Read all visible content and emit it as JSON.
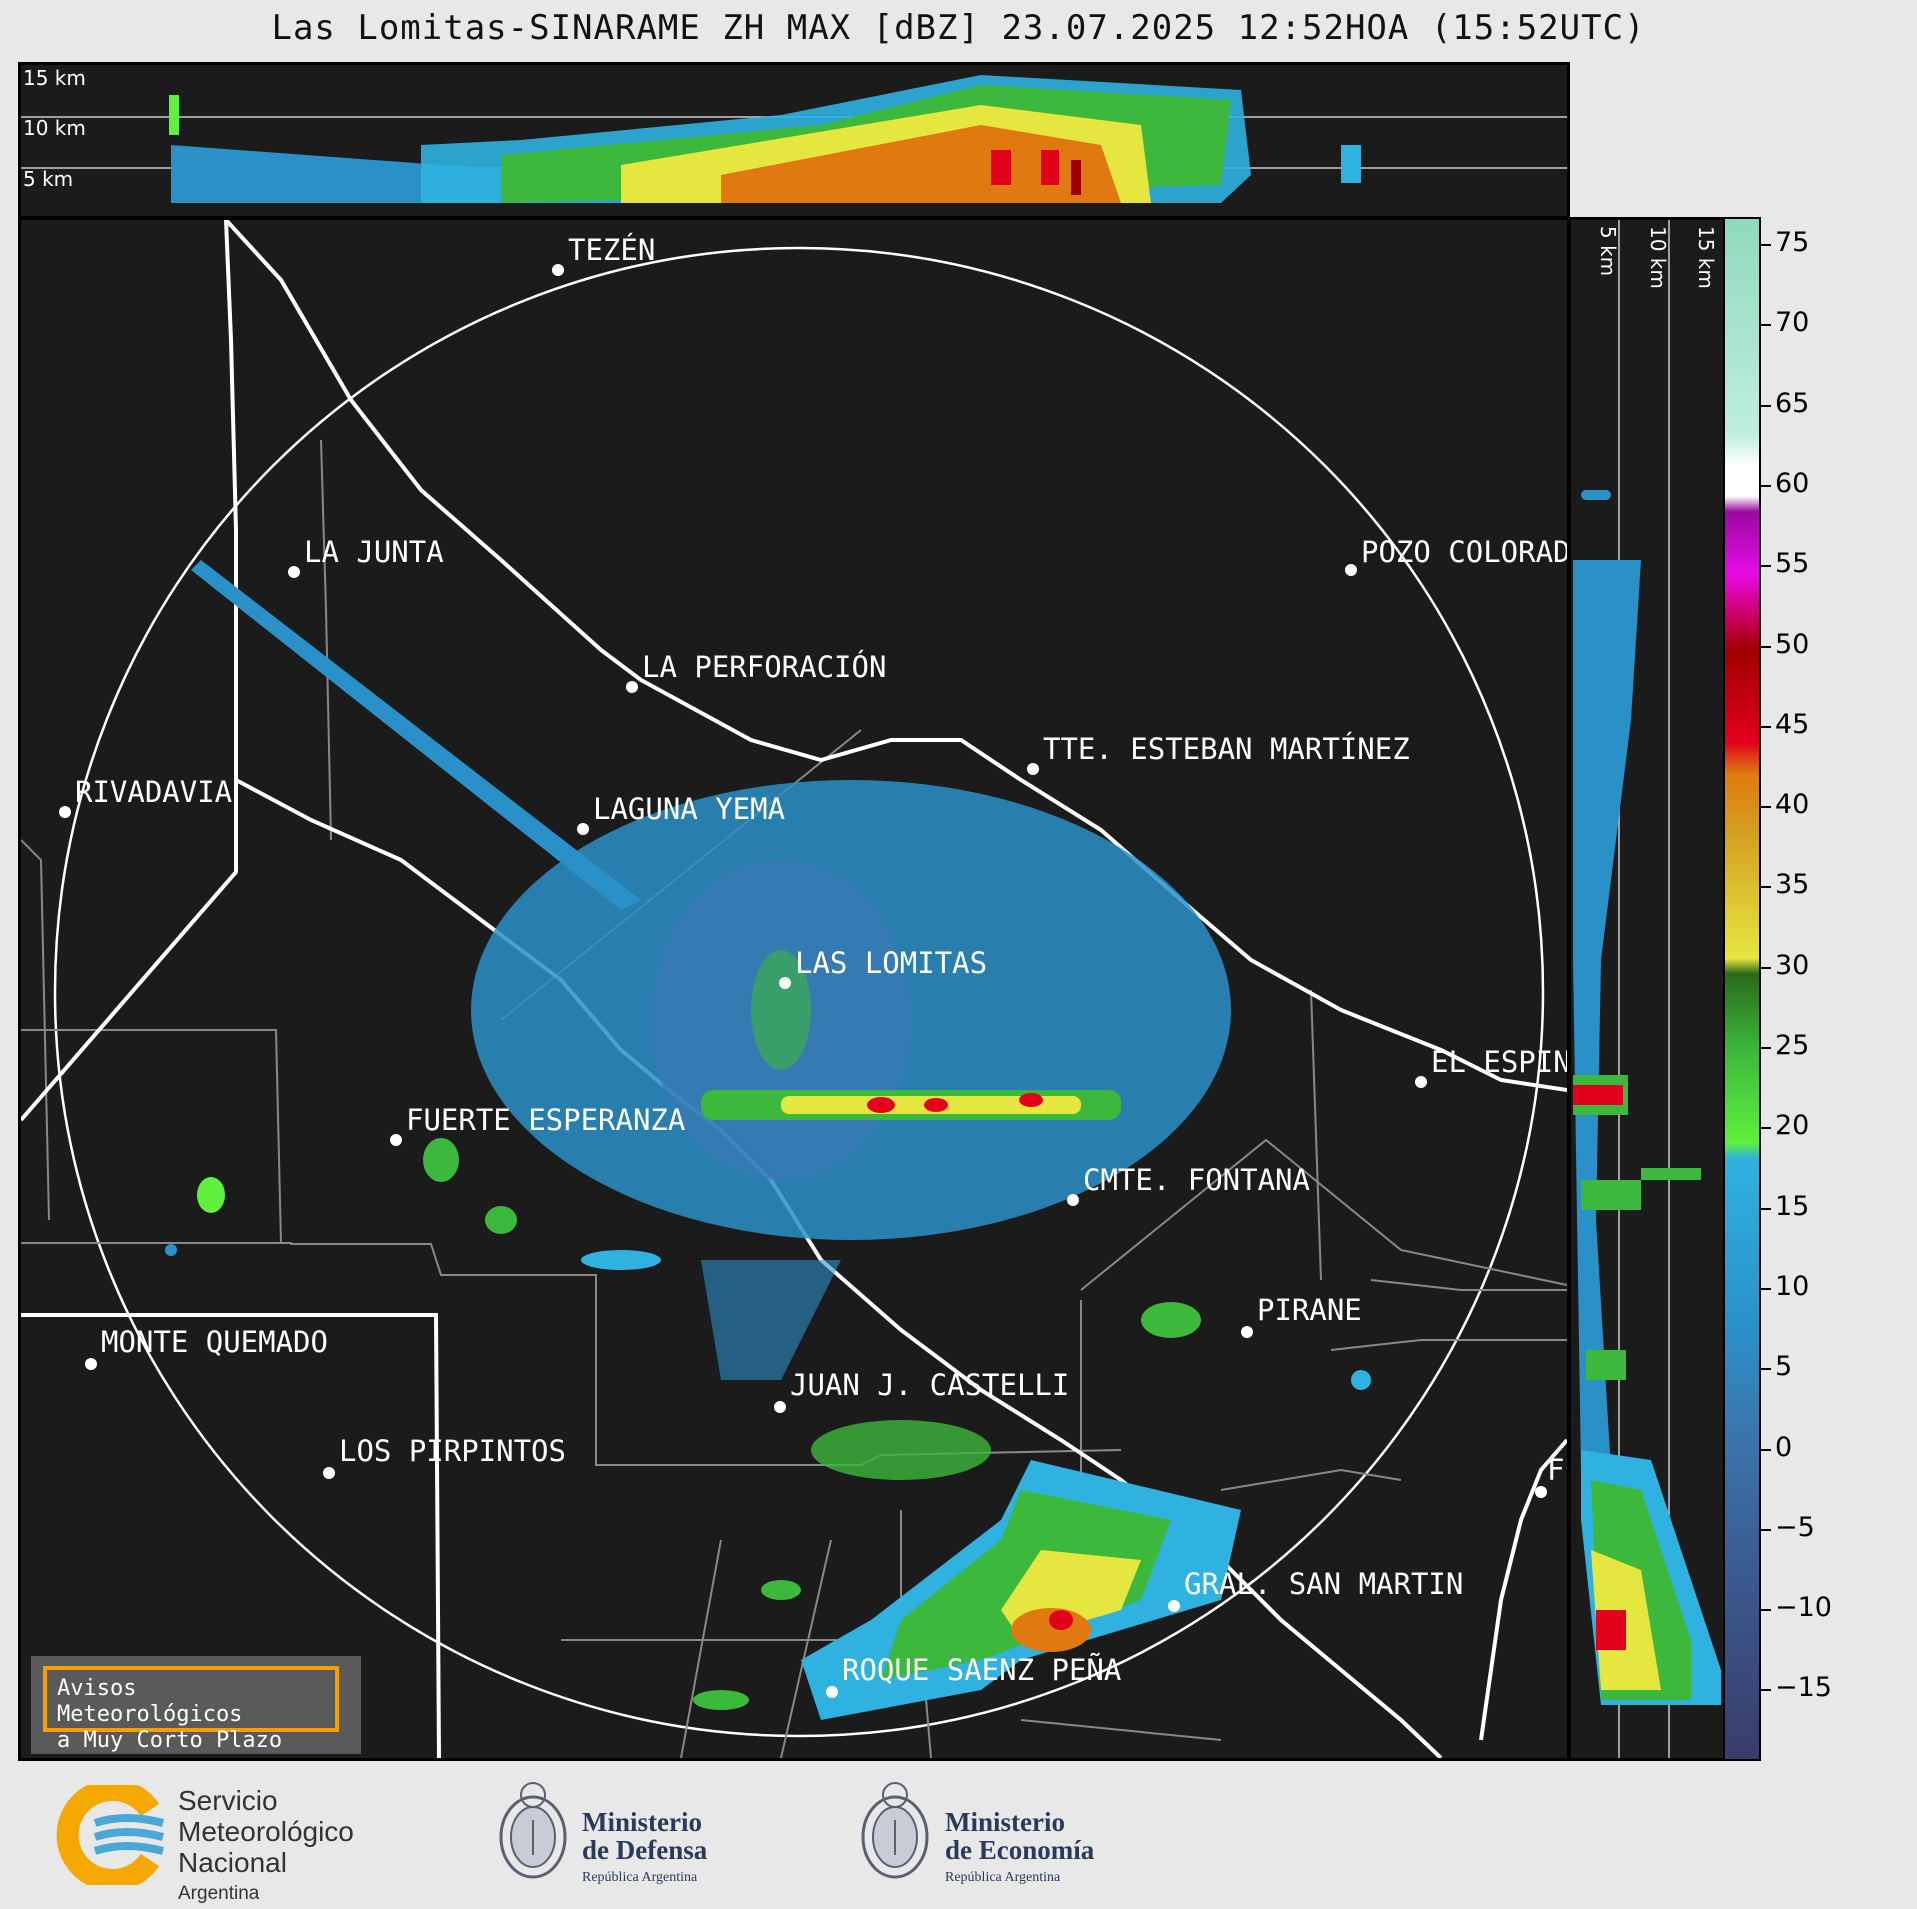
{
  "title": "Las Lomitas-SINARAME ZH MAX [dBZ] 23.07.2025 12:52HOA (15:52UTC)",
  "top_panel": {
    "height_labels": [
      "15 km",
      "10 km",
      "5 km"
    ]
  },
  "right_panel": {
    "height_labels": [
      "5 km",
      "10 km",
      "15 km"
    ]
  },
  "colorbar": {
    "unit": "dBZ",
    "ticks": [
      "75",
      "70",
      "65",
      "60",
      "55",
      "50",
      "45",
      "40",
      "35",
      "30",
      "25",
      "20",
      "15",
      "10",
      "5",
      "0",
      "−5",
      "−10",
      "−15"
    ],
    "colors": [
      "#8fd9bd",
      "#ffffff",
      "#e60ae6",
      "#a00000",
      "#e07a10",
      "#e6e640",
      "#3cb83c",
      "#2fb2e0",
      "#3a78b0",
      "#3a3c6a"
    ]
  },
  "places": [
    {
      "name": "TEZÉN"
    },
    {
      "name": "LA JUNTA"
    },
    {
      "name": "POZO COLORAD"
    },
    {
      "name": "LA PERFORACIÓN"
    },
    {
      "name": "TTE. ESTEBAN MARTÍNEZ"
    },
    {
      "name": "RIVADAVIA"
    },
    {
      "name": "LAGUNA YEMA"
    },
    {
      "name": "LAS LOMITAS"
    },
    {
      "name": "EL ESPIN"
    },
    {
      "name": "FUERTE ESPERANZA"
    },
    {
      "name": "CMTE. FONTANA"
    },
    {
      "name": "PIRANE"
    },
    {
      "name": "MONTE QUEMADO"
    },
    {
      "name": "JUAN J. CASTELLI"
    },
    {
      "name": "LOS PIRPINTOS"
    },
    {
      "name": "GRAL. SAN MARTIN"
    },
    {
      "name": "ROQUE SAENZ PEÑA"
    },
    {
      "name": "F"
    }
  ],
  "alert_box": {
    "line1": "Avisos Meteorológicos",
    "line2": "a Muy Corto Plazo"
  },
  "footer": {
    "smn": {
      "line1": "Servicio",
      "line2": "Meteorológico",
      "line3": "Nacional",
      "line4": "Argentina"
    },
    "defensa": {
      "line1": "Ministerio",
      "line2": "de Defensa",
      "line3": "República Argentina"
    },
    "economia": {
      "line1": "Ministerio",
      "line2": "de Economía",
      "line3": "República Argentina"
    }
  }
}
